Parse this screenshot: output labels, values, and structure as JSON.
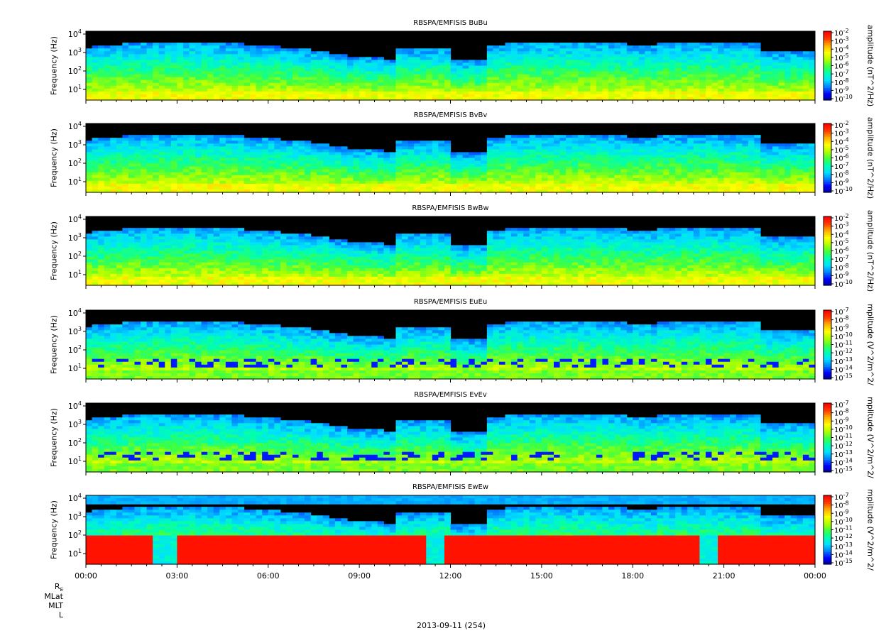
{
  "chart_data": [
    {
      "type": "heatmap",
      "title": "RBSPA/EMFISIS  BuBu",
      "ylabel": "Frequency (Hz)",
      "colorbar_label": "amplitude (nT^2/Hz)",
      "colorbar_ticks": [
        "10-2",
        "10-3",
        "10-4",
        "10-5",
        "10-6",
        "10-7",
        "10-8",
        "10-9",
        "10-10"
      ],
      "yticks": [
        "104",
        "103",
        "102",
        "101"
      ],
      "kind": "B",
      "band_offset": 0
    },
    {
      "type": "heatmap",
      "title": "RBSPA/EMFISIS  BvBv",
      "ylabel": "Frequency (Hz)",
      "colorbar_label": "amplitude (nT^2/Hz)",
      "colorbar_ticks": [
        "10-2",
        "10-3",
        "10-4",
        "10-5",
        "10-6",
        "10-7",
        "10-8",
        "10-9",
        "10-10"
      ],
      "yticks": [
        "104",
        "103",
        "102",
        "101"
      ],
      "kind": "B",
      "band_offset": 1
    },
    {
      "type": "heatmap",
      "title": "RBSPA/EMFISIS  BwBw",
      "ylabel": "Frequency (Hz)",
      "colorbar_label": "amplitude (nT^2/Hz)",
      "colorbar_ticks": [
        "10-2",
        "10-3",
        "10-4",
        "10-5",
        "10-6",
        "10-7",
        "10-8",
        "10-9",
        "10-10"
      ],
      "yticks": [
        "104",
        "103",
        "102",
        "101"
      ],
      "kind": "Bw",
      "band_offset": 2
    },
    {
      "type": "heatmap",
      "title": "RBSPA/EMFISIS  EuEu",
      "ylabel": "Frequency (Hz)",
      "colorbar_label": "mplitude (V^2/m^2/",
      "colorbar_ticks": [
        "10-7",
        "10-8",
        "10-9",
        "10-10",
        "10-11",
        "10-12",
        "10-13",
        "10-14",
        "10-15"
      ],
      "yticks": [
        "104",
        "103",
        "102",
        "101"
      ],
      "kind": "E",
      "band_offset": 3
    },
    {
      "type": "heatmap",
      "title": "RBSPA/EMFISIS  EvEv",
      "ylabel": "Frequency (Hz)",
      "colorbar_label": "mplitude (V^2/m^2/",
      "colorbar_ticks": [
        "10-7",
        "10-8",
        "10-9",
        "10-10",
        "10-11",
        "10-12",
        "10-13",
        "10-14",
        "10-15"
      ],
      "yticks": [
        "104",
        "103",
        "102",
        "101"
      ],
      "kind": "E",
      "band_offset": 4
    },
    {
      "type": "heatmap",
      "title": "RBSPA/EMFISIS  EwEw",
      "ylabel": "Frequency (Hz)",
      "colorbar_label": "mplitude (V^2/m^2/",
      "colorbar_ticks": [
        "10-7",
        "10-8",
        "10-9",
        "10-10",
        "10-11",
        "10-12",
        "10-13",
        "10-14",
        "10-15"
      ],
      "yticks": [
        "104",
        "103",
        "102",
        "101"
      ],
      "kind": "Ew",
      "band_offset": 5
    }
  ],
  "x_axis": {
    "tick_labels": [
      "00:00",
      "03:00",
      "06:00",
      "09:00",
      "12:00",
      "15:00",
      "18:00",
      "21:00",
      "00:00"
    ]
  },
  "ephemeris_labels": [
    "R",
    "MLat",
    "MLT",
    "L"
  ],
  "ephemeris_subscript": "E",
  "date_label": "2013-09-11 (254)",
  "colors": {
    "background": "#000000",
    "colormap": [
      "#00008c",
      "#0000ff",
      "#0080ff",
      "#00e0ff",
      "#00ffb0",
      "#40ff40",
      "#b0ff00",
      "#ffff00",
      "#ffb000",
      "#ff4000",
      "#ff0000"
    ]
  }
}
